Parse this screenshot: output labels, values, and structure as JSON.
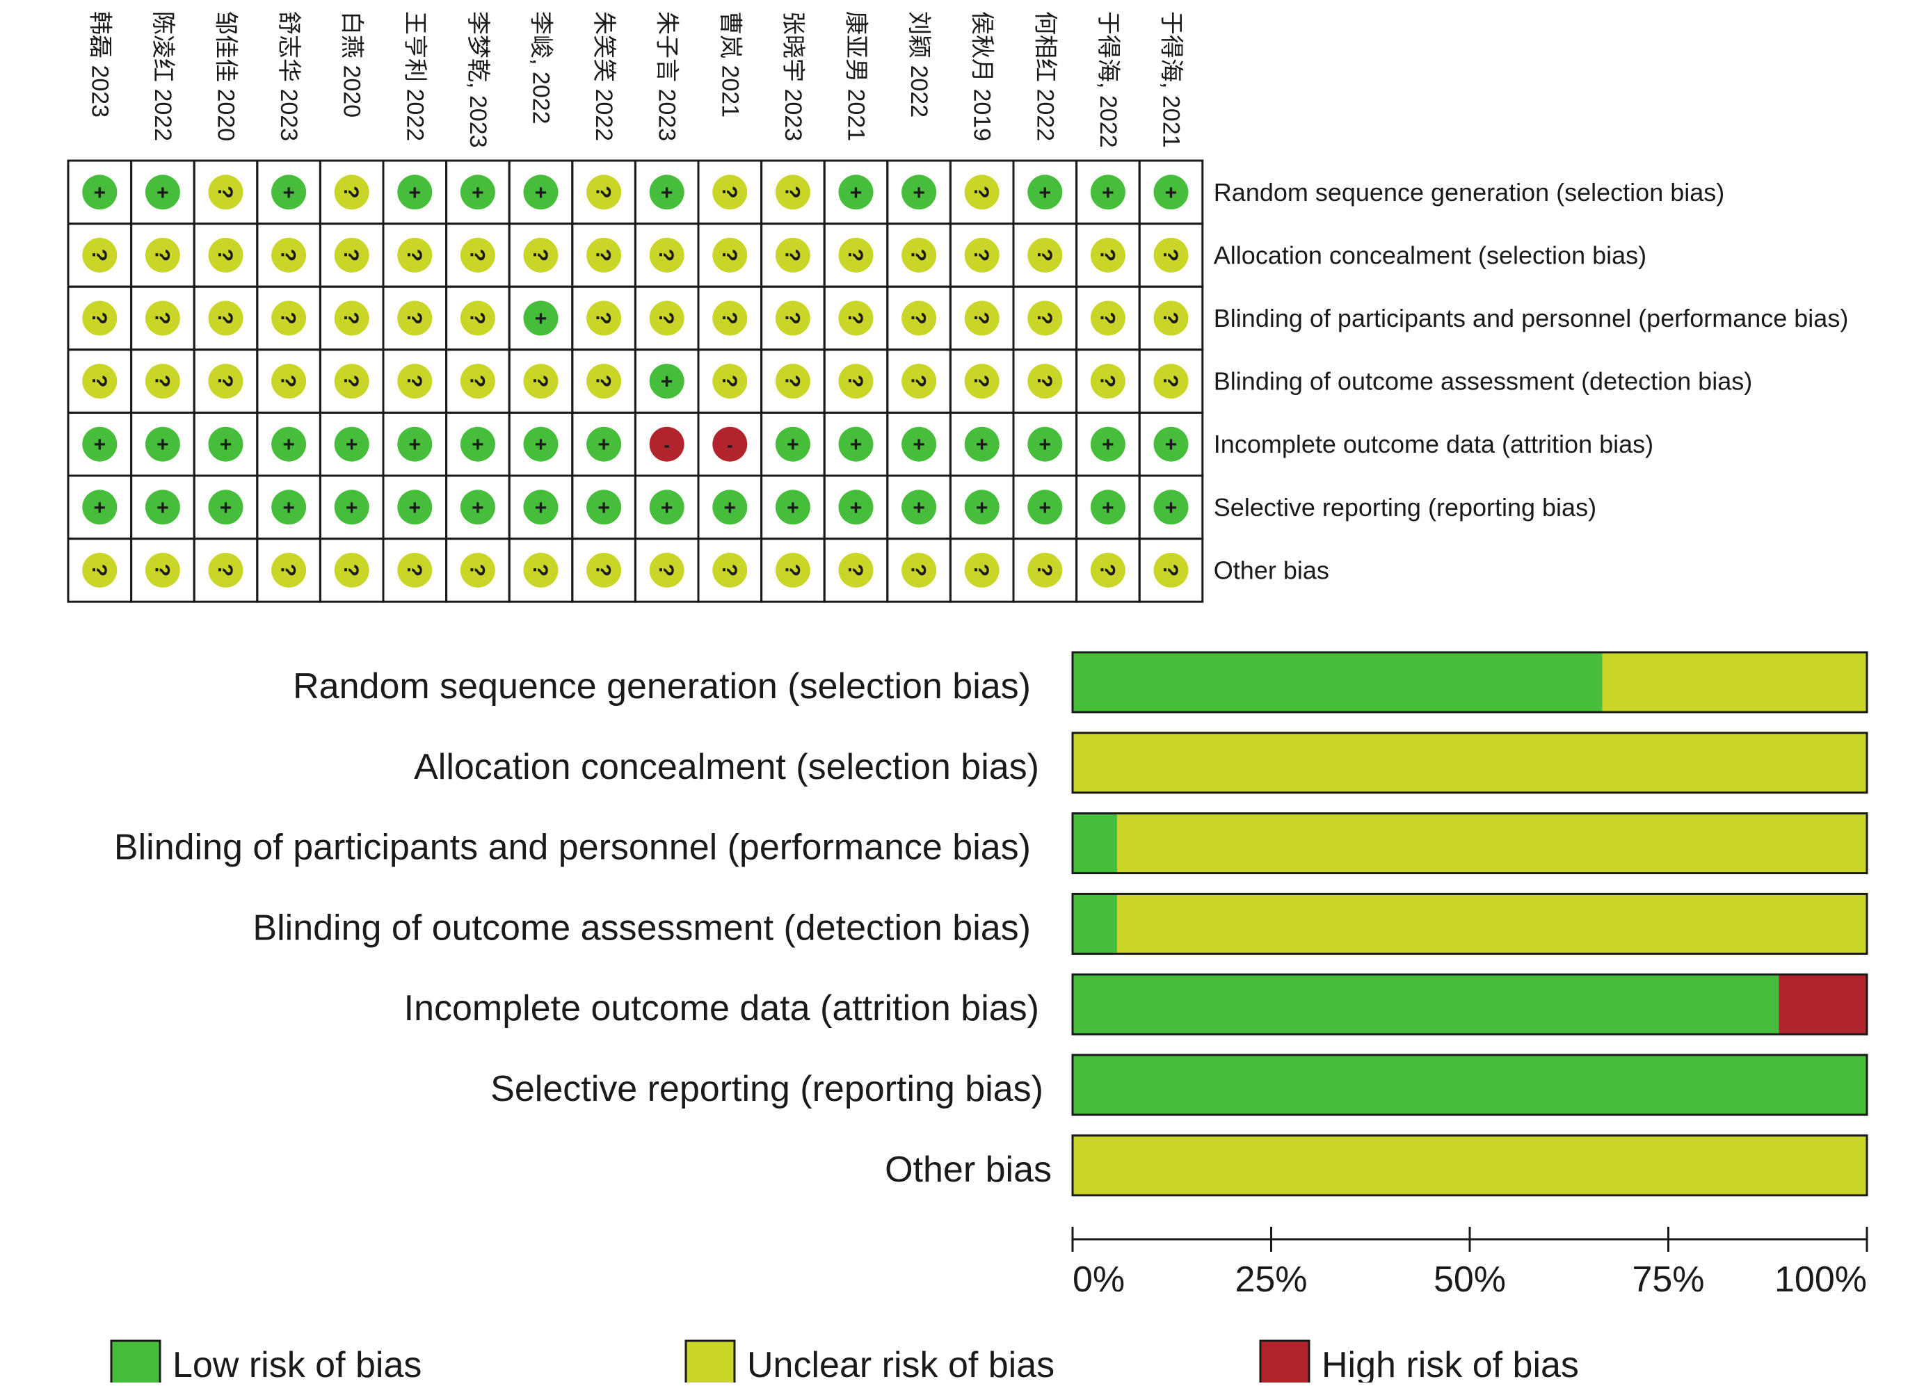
{
  "colors": {
    "low": "#46bd3b",
    "unclear": "#c9d527",
    "high": "#b2242b",
    "grid": "#1a1a1a"
  },
  "chart_data": [
    {
      "type": "table",
      "studies": [
        "韩磊 2023",
        "陈凌红 2022",
        "邹佳佳 2020",
        "舒志华 2023",
        "白燕 2020",
        "王亨利 2022",
        "李梦乾, 2023",
        "李峻, 2022",
        "朱笑笑 2022",
        "朱子言 2023",
        "曹岚 2021",
        "张晓宇 2023",
        "康亚男 2021",
        "刘颖 2022",
        "侯秋月 2019",
        "何相红 2022",
        "于得海, 2022",
        "于得海, 2021"
      ],
      "domains": [
        "Random sequence generation (selection bias)",
        "Allocation concealment (selection bias)",
        "Blinding of participants and personnel (performance bias)",
        "Blinding of outcome assessment (detection bias)",
        "Incomplete outcome data (attrition bias)",
        "Selective reporting (reporting bias)",
        "Other bias"
      ],
      "symbols": {
        "low": "+",
        "unclear": "?",
        "high": "-"
      },
      "judgements": [
        [
          "low",
          "low",
          "unclear",
          "low",
          "unclear",
          "low",
          "low",
          "low",
          "unclear",
          "low",
          "unclear",
          "unclear",
          "low",
          "low",
          "unclear",
          "low",
          "low",
          "low"
        ],
        [
          "unclear",
          "unclear",
          "unclear",
          "unclear",
          "unclear",
          "unclear",
          "unclear",
          "unclear",
          "unclear",
          "unclear",
          "unclear",
          "unclear",
          "unclear",
          "unclear",
          "unclear",
          "unclear",
          "unclear",
          "unclear"
        ],
        [
          "unclear",
          "unclear",
          "unclear",
          "unclear",
          "unclear",
          "unclear",
          "unclear",
          "low",
          "unclear",
          "unclear",
          "unclear",
          "unclear",
          "unclear",
          "unclear",
          "unclear",
          "unclear",
          "unclear",
          "unclear"
        ],
        [
          "unclear",
          "unclear",
          "unclear",
          "unclear",
          "unclear",
          "unclear",
          "unclear",
          "unclear",
          "unclear",
          "low",
          "unclear",
          "unclear",
          "unclear",
          "unclear",
          "unclear",
          "unclear",
          "unclear",
          "unclear"
        ],
        [
          "low",
          "low",
          "low",
          "low",
          "low",
          "low",
          "low",
          "low",
          "low",
          "high",
          "high",
          "low",
          "low",
          "low",
          "low",
          "low",
          "low",
          "low"
        ],
        [
          "low",
          "low",
          "low",
          "low",
          "low",
          "low",
          "low",
          "low",
          "low",
          "low",
          "low",
          "low",
          "low",
          "low",
          "low",
          "low",
          "low",
          "low"
        ],
        [
          "unclear",
          "unclear",
          "unclear",
          "unclear",
          "unclear",
          "unclear",
          "unclear",
          "unclear",
          "unclear",
          "unclear",
          "unclear",
          "unclear",
          "unclear",
          "unclear",
          "unclear",
          "unclear",
          "unclear",
          "unclear"
        ]
      ]
    },
    {
      "type": "bar",
      "orientation": "horizontal",
      "stacked": true,
      "categories": [
        "Random sequence generation (selection bias)",
        "Allocation concealment (selection bias)",
        "Blinding of participants and personnel (performance bias)",
        "Blinding of outcome assessment (detection bias)",
        "Incomplete outcome data (attrition bias)",
        "Selective reporting (reporting bias)",
        "Other bias"
      ],
      "series": [
        {
          "name": "Low risk of bias",
          "key": "low",
          "values": [
            66.7,
            0,
            5.6,
            5.6,
            88.9,
            100,
            0
          ]
        },
        {
          "name": "Unclear risk of bias",
          "key": "unclear",
          "values": [
            33.3,
            100,
            94.4,
            94.4,
            0,
            0,
            100
          ]
        },
        {
          "name": "High risk of bias",
          "key": "high",
          "values": [
            0,
            0,
            0,
            0,
            11.1,
            0,
            0
          ]
        }
      ],
      "xlim": [
        0,
        100
      ],
      "xticks": [
        0,
        25,
        50,
        75,
        100
      ],
      "xtick_labels": [
        "0%",
        "25%",
        "50%",
        "75%",
        "100%"
      ],
      "legend_position": "bottom"
    }
  ]
}
